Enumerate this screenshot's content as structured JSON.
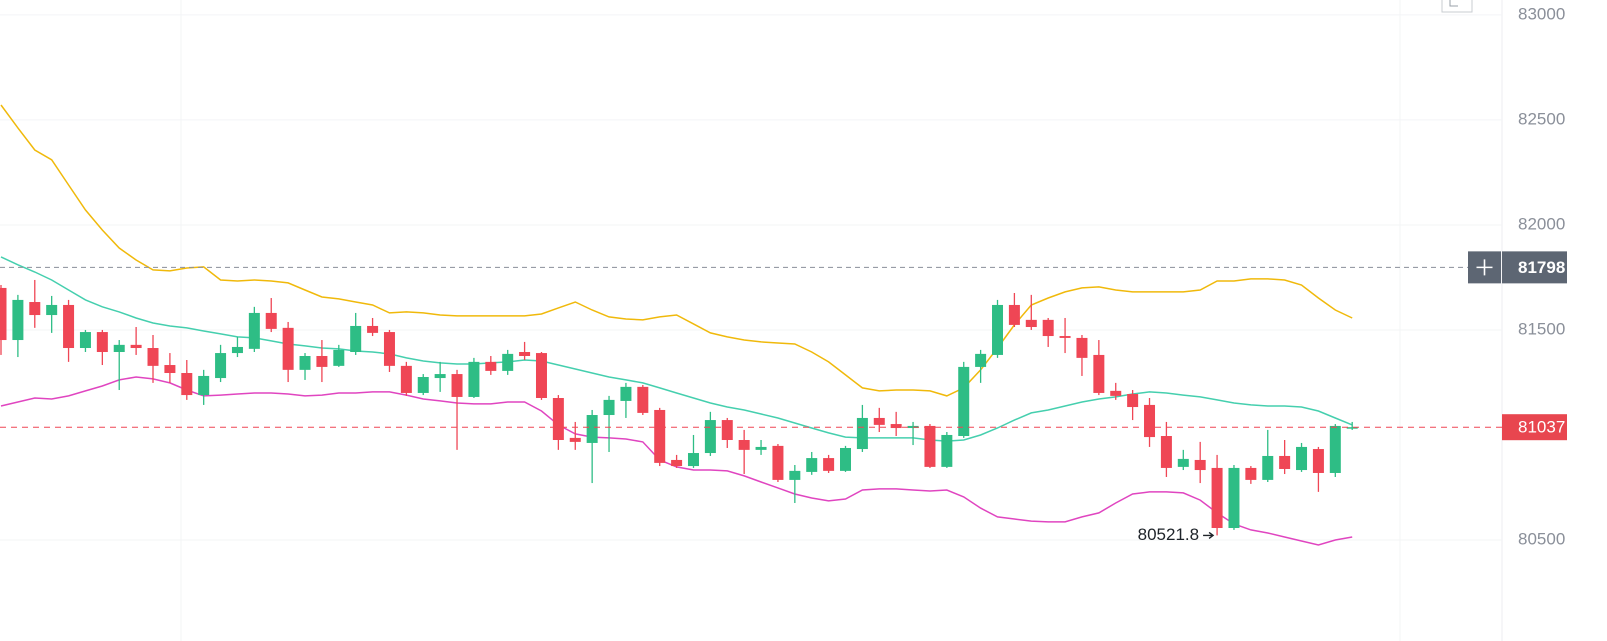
{
  "chart_data": {
    "type": "candlestick",
    "up_color": "#2ebd85",
    "down_color": "#ef4655",
    "ylim": [
      80019,
      83071
    ],
    "yticks": [
      80500,
      81500,
      82000,
      82500,
      83000
    ],
    "grid": true,
    "open": [
      81700,
      81452,
      81633,
      81571,
      81619,
      81414,
      81490,
      81395,
      81429,
      81414,
      81333,
      81295,
      81190,
      81271,
      81390,
      81410,
      81581,
      81510,
      81310,
      81376,
      81329,
      81395,
      81519,
      81490,
      81329,
      81200,
      81271,
      81290,
      81181,
      81348,
      81305,
      81395,
      81390,
      81176,
      80986,
      80962,
      81095,
      81162,
      81229,
      81119,
      80881,
      80852,
      80914,
      81071,
      80976,
      80929,
      80948,
      80786,
      80824,
      80890,
      80829,
      80933,
      81081,
      81052,
      81033,
      81043,
      80848,
      80995,
      81324,
      81381,
      81619,
      81548,
      81548,
      81471,
      81462,
      81381,
      81210,
      81195,
      81143,
      80995,
      80848,
      80881,
      80843,
      80557,
      80843,
      80786,
      80900,
      80833,
      80933,
      80819,
      81033
    ],
    "high": [
      81714,
      81667,
      81738,
      81662,
      81643,
      81500,
      81500,
      81452,
      81514,
      81476,
      81390,
      81357,
      81310,
      81429,
      81467,
      81610,
      81652,
      81538,
      81390,
      81452,
      81429,
      81581,
      81557,
      81500,
      81348,
      81290,
      81348,
      81310,
      81367,
      81376,
      81405,
      81443,
      81395,
      81190,
      81062,
      81119,
      81186,
      81248,
      81238,
      81129,
      80905,
      81000,
      81110,
      81081,
      81024,
      80976,
      80957,
      80857,
      80919,
      80905,
      80948,
      81143,
      81129,
      81110,
      81062,
      81052,
      81014,
      81348,
      81405,
      81643,
      81676,
      81667,
      81557,
      81557,
      81476,
      81452,
      81248,
      81214,
      81176,
      81062,
      80929,
      80967,
      80905,
      80857,
      80852,
      81024,
      80976,
      80962,
      80943,
      81052,
      81062
    ],
    "low": [
      81381,
      81371,
      81510,
      81486,
      81348,
      81395,
      81333,
      81214,
      81381,
      81248,
      81248,
      81167,
      81143,
      81252,
      81371,
      81395,
      81490,
      81252,
      81262,
      81252,
      81324,
      81381,
      81471,
      81300,
      81186,
      81190,
      81205,
      80929,
      81176,
      81286,
      81286,
      81357,
      81167,
      80929,
      80929,
      80771,
      80919,
      81081,
      81095,
      80852,
      80843,
      80843,
      80900,
      80938,
      80814,
      80905,
      80776,
      80676,
      80810,
      80819,
      80824,
      80919,
      81014,
      80995,
      80952,
      80843,
      80843,
      80986,
      81248,
      81367,
      81514,
      81500,
      81419,
      81390,
      81281,
      81190,
      81167,
      81071,
      80943,
      80800,
      80833,
      80771,
      80521.8,
      80548,
      80767,
      80776,
      80814,
      80824,
      80729,
      80800,
      81024
    ],
    "close": [
      81452,
      81643,
      81571,
      81619,
      81414,
      81490,
      81395,
      81429,
      81414,
      81329,
      81295,
      81190,
      81281,
      81390,
      81419,
      81581,
      81505,
      81310,
      81376,
      81324,
      81405,
      81519,
      81486,
      81329,
      81200,
      81276,
      81290,
      81181,
      81348,
      81305,
      81386,
      81376,
      81176,
      80976,
      80967,
      81095,
      81167,
      81229,
      81105,
      80867,
      80852,
      80914,
      81071,
      80976,
      80929,
      80943,
      80786,
      80829,
      80890,
      80829,
      80938,
      81081,
      81048,
      81033,
      81043,
      80848,
      81000,
      81324,
      81386,
      81619,
      81524,
      81514,
      81471,
      81462,
      81367,
      81200,
      81186,
      81133,
      80990,
      80843,
      80886,
      80833,
      80557,
      80843,
      80786,
      80900,
      80838,
      80943,
      80819,
      81043,
      81037
    ],
    "lines": [
      {
        "color": "#f0b90b",
        "values": [
          82571,
          82462,
          82357,
          82310,
          82190,
          82071,
          81976,
          81890,
          81833,
          81786,
          81781,
          81795,
          81800,
          81738,
          81733,
          81738,
          81733,
          81724,
          81690,
          81657,
          81648,
          81633,
          81619,
          81581,
          81586,
          81581,
          81571,
          81567,
          81567,
          81567,
          81567,
          81567,
          81576,
          81605,
          81633,
          81595,
          81562,
          81552,
          81548,
          81562,
          81571,
          81529,
          81486,
          81467,
          81452,
          81443,
          81438,
          81433,
          81395,
          81348,
          81286,
          81224,
          81210,
          81214,
          81214,
          81210,
          81186,
          81224,
          81310,
          81414,
          81524,
          81619,
          81652,
          81681,
          81700,
          81705,
          81690,
          81681,
          81681,
          81681,
          81681,
          81690,
          81733,
          81733,
          81743,
          81743,
          81738,
          81714,
          81652,
          81595,
          81557
        ]
      },
      {
        "color": "#45cfae",
        "values": [
          81848,
          81810,
          81776,
          81738,
          81690,
          81643,
          81610,
          81586,
          81557,
          81533,
          81519,
          81510,
          81495,
          81481,
          81467,
          81462,
          81448,
          81433,
          81424,
          81414,
          81410,
          81400,
          81395,
          81386,
          81367,
          81352,
          81343,
          81338,
          81338,
          81343,
          81348,
          81357,
          81352,
          81333,
          81314,
          81295,
          81276,
          81262,
          81248,
          81224,
          81200,
          81176,
          81152,
          81133,
          81119,
          81100,
          81081,
          81057,
          81033,
          81010,
          80990,
          80986,
          80986,
          80986,
          80986,
          80976,
          80971,
          80976,
          81000,
          81033,
          81071,
          81105,
          81119,
          81138,
          81157,
          81171,
          81181,
          81195,
          81205,
          81200,
          81190,
          81181,
          81167,
          81152,
          81143,
          81138,
          81138,
          81133,
          81114,
          81081,
          81048
        ]
      },
      {
        "color": "#e045c0",
        "values": [
          81138,
          81157,
          81176,
          81171,
          81186,
          81210,
          81233,
          81262,
          81276,
          81267,
          81248,
          81214,
          81186,
          81190,
          81195,
          81200,
          81200,
          81195,
          81186,
          81190,
          81200,
          81200,
          81205,
          81205,
          81190,
          81171,
          81162,
          81152,
          81148,
          81148,
          81157,
          81157,
          81114,
          81048,
          81005,
          80990,
          80986,
          80981,
          80967,
          80881,
          80848,
          80833,
          80833,
          80829,
          80805,
          80776,
          80748,
          80719,
          80700,
          80686,
          80695,
          80738,
          80743,
          80743,
          80738,
          80733,
          80738,
          80705,
          80652,
          80610,
          80600,
          80590,
          80586,
          80586,
          80610,
          80629,
          80676,
          80719,
          80729,
          80729,
          80724,
          80690,
          80629,
          80576,
          80548,
          80533,
          80514,
          80495,
          80476,
          80500,
          80514
        ]
      }
    ],
    "crosshair_price": 81798,
    "last_price": 81037,
    "low_label": "80521.8"
  }
}
